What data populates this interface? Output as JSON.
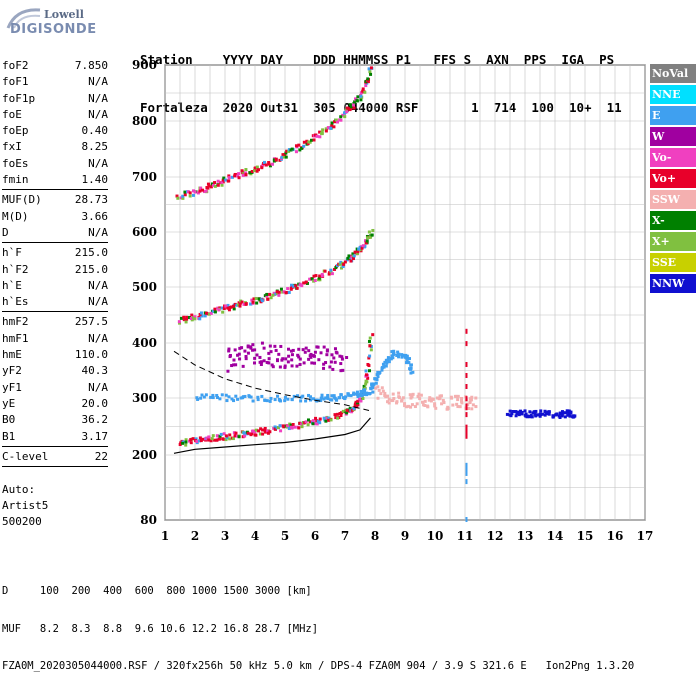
{
  "logo": {
    "line1": "Lowell",
    "line2": "DIGISONDE"
  },
  "header": {
    "labels": "Station    YYYY DAY    DDD HHMMSS P1   FFS S  AXN  PPS  IGA  PS",
    "values": "Fortaleza  2020 Out31  305 044000 RSF       1  714  100  10+  11"
  },
  "params_group1": [
    {
      "label": "foF2",
      "value": "7.850"
    },
    {
      "label": "foF1",
      "value": "N/A"
    },
    {
      "label": "foF1p",
      "value": "N/A"
    },
    {
      "label": "foE",
      "value": "N/A"
    },
    {
      "label": "foEp",
      "value": "0.40"
    },
    {
      "label": "fxI",
      "value": "8.25"
    },
    {
      "label": "foEs",
      "value": "N/A"
    },
    {
      "label": "fmin",
      "value": "1.40"
    }
  ],
  "params_group2": [
    {
      "label": "MUF(D)",
      "value": "28.73"
    },
    {
      "label": "M(D)",
      "value": "3.66"
    },
    {
      "label": "D",
      "value": "N/A"
    }
  ],
  "params_group3": [
    {
      "label": "h`F",
      "value": "215.0"
    },
    {
      "label": "h`F2",
      "value": "215.0"
    },
    {
      "label": "h`E",
      "value": "N/A"
    },
    {
      "label": "h`Es",
      "value": "N/A"
    }
  ],
  "params_group4": [
    {
      "label": "hmF2",
      "value": "257.5"
    },
    {
      "label": "hmF1",
      "value": "N/A"
    },
    {
      "label": "hmE",
      "value": "110.0"
    },
    {
      "label": "yF2",
      "value": "40.3"
    },
    {
      "label": "yF1",
      "value": "N/A"
    },
    {
      "label": "yE",
      "value": "20.0"
    },
    {
      "label": "B0",
      "value": "36.2"
    },
    {
      "label": "B1",
      "value": "3.17"
    }
  ],
  "params_group5": [
    {
      "label": "C-level",
      "value": "22"
    }
  ],
  "auto": {
    "line1": "Auto:",
    "line2": "Artist5",
    "line3": "500200"
  },
  "legend": [
    {
      "label": "NoVal",
      "color": "#808080"
    },
    {
      "label": "NNE",
      "color": "#00e0ff"
    },
    {
      "label": "E",
      "color": "#3fa0f0"
    },
    {
      "label": "W",
      "color": "#a000a0"
    },
    {
      "label": "Vo-",
      "color": "#f040c0"
    },
    {
      "label": "Vo+",
      "color": "#e8002a"
    },
    {
      "label": "SSW",
      "color": "#f4b0b0"
    },
    {
      "label": "X-",
      "color": "#008000"
    },
    {
      "label": "X+",
      "color": "#80c040"
    },
    {
      "label": "SSE",
      "color": "#c8d000"
    },
    {
      "label": "NNW",
      "color": "#1010d0"
    }
  ],
  "footer": {
    "line1": "D     100  200  400  600  800 1000 1500 3000 [km]",
    "line2": "MUF   8.2  8.3  8.8  9.6 10.6 12.2 16.8 28.7 [MHz]",
    "line3": "FZA0M_2020305044000.RSF / 320fx256h 50 kHz 5.0 km / DPS-4 FZA0M 904 / 3.9 S 321.6 E   Ion2Png 1.3.20"
  },
  "chart_data": {
    "type": "scatter",
    "xlim": [
      1,
      17
    ],
    "ylim": [
      80,
      900
    ],
    "x_ticks": [
      "1",
      "2",
      "3",
      "4",
      "5",
      "6",
      "7",
      "8",
      "9",
      "10",
      "11",
      "12",
      "13",
      "14",
      "15",
      "16",
      "17"
    ],
    "y_ticks": [
      "80",
      "200",
      "300",
      "400",
      "500",
      "600",
      "700",
      "800",
      "900"
    ],
    "grid": true,
    "legend_placement": "right",
    "traces": [
      {
        "name": "O-trace 1st hop",
        "polarization": "Vo+",
        "x": [
          1.4,
          2,
          2.5,
          3,
          3.5,
          4,
          4.5,
          5,
          5.5,
          6,
          6.5,
          7,
          7.3,
          7.5,
          7.7,
          7.85
        ],
        "y": [
          218,
          222,
          226,
          230,
          233,
          237,
          241,
          246,
          251,
          257,
          263,
          272,
          282,
          300,
          340,
          420
        ]
      },
      {
        "name": "O-trace 2nd hop",
        "polarization": "Vo+",
        "x": [
          1.4,
          2,
          2.5,
          3,
          3.5,
          4,
          4.5,
          5,
          5.5,
          6,
          6.5,
          7,
          7.3,
          7.6,
          7.85
        ],
        "y": [
          438,
          444,
          452,
          460,
          467,
          474,
          482,
          492,
          502,
          514,
          527,
          543,
          556,
          575,
          600
        ]
      },
      {
        "name": "O-trace 3rd hop",
        "polarization": "Vo+",
        "x": [
          1.4,
          2,
          2.5,
          3,
          3.5,
          4,
          4.5,
          5,
          5.5,
          6,
          6.5,
          7,
          7.3,
          7.6,
          7.85
        ],
        "y": [
          662,
          670,
          680,
          692,
          702,
          712,
          724,
          738,
          752,
          770,
          788,
          812,
          828,
          855,
          895
        ]
      },
      {
        "name": "X-trace 1st hop",
        "polarization": "E",
        "x": [
          2,
          3,
          4,
          5,
          6,
          6.5,
          7,
          7.5,
          7.8,
          8,
          8.3,
          8.6,
          9,
          9.2
        ],
        "y": [
          300,
          298,
          297,
          296,
          297,
          298,
          300,
          305,
          310,
          330,
          360,
          380,
          370,
          340
        ]
      },
      {
        "name": "Spread echoes",
        "polarization": "W",
        "x": [
          3,
          3.5,
          4,
          4.5,
          5,
          5.5,
          6,
          6.5,
          7
        ],
        "y": [
          350,
          360,
          365,
          360,
          355,
          362,
          358,
          354,
          350
        ]
      },
      {
        "name": "Oblique spread",
        "polarization": "SSW",
        "x": [
          8,
          8.5,
          9,
          9.5,
          10,
          10.5,
          11,
          11.3
        ],
        "y": [
          300,
          290,
          285,
          285,
          283,
          282,
          282,
          280
        ]
      },
      {
        "name": "NNW echoes",
        "polarization": "NNW",
        "x": [
          12.4,
          12.8,
          13.2,
          13.6,
          14,
          14.4,
          14.6
        ],
        "y": [
          270,
          270,
          269,
          270,
          268,
          270,
          269
        ]
      }
    ],
    "profile_curve": {
      "x": [
        1.3,
        2,
        3,
        4,
        5,
        6,
        7,
        7.5,
        7.85
      ],
      "y": [
        203,
        210,
        214,
        218,
        222,
        228,
        236,
        244,
        265
      ]
    },
    "dashed_curve": {
      "x": [
        1.3,
        2,
        3,
        4,
        5,
        6,
        7,
        7.8
      ],
      "y": [
        385,
        360,
        335,
        318,
        306,
        296,
        288,
        278
      ]
    }
  }
}
